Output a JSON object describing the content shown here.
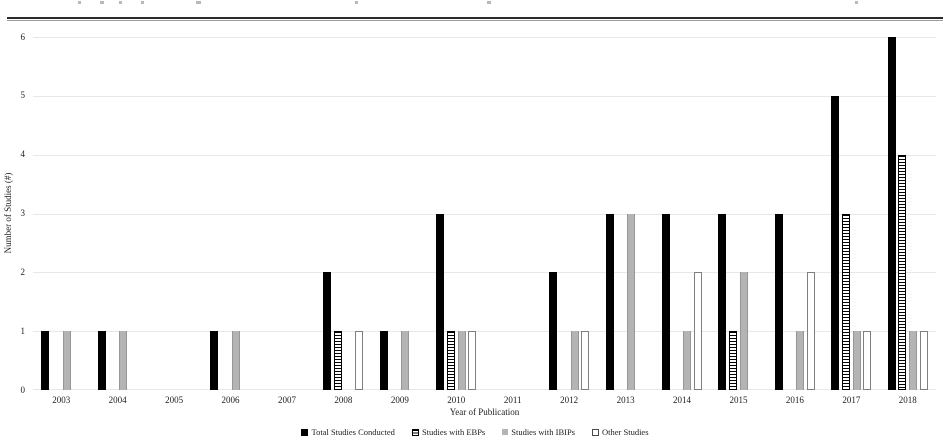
{
  "chart_data": {
    "type": "bar",
    "title": "",
    "xlabel": "Year of Publication",
    "ylabel": "Number of Studies (#)",
    "ylim": [
      0,
      6
    ],
    "yticks": [
      0,
      1,
      2,
      3,
      4,
      5,
      6
    ],
    "grid": "horizontal",
    "legend_position": "bottom-center",
    "categories": [
      "2003",
      "2004",
      "2005",
      "2006",
      "2007",
      "2008",
      "2009",
      "2010",
      "2011",
      "2012",
      "2013",
      "2014",
      "2015",
      "2016",
      "2017",
      "2018"
    ],
    "series": [
      {
        "name": "Total Studies Conducted",
        "style": "solid-black",
        "values": [
          1,
          1,
          0,
          1,
          0,
          2,
          1,
          3,
          0,
          2,
          3,
          3,
          3,
          3,
          5,
          6
        ]
      },
      {
        "name": "Studies with EBPs",
        "style": "horizontal-stripes",
        "values": [
          0,
          0,
          0,
          0,
          0,
          1,
          0,
          1,
          0,
          0,
          0,
          0,
          1,
          0,
          3,
          4
        ]
      },
      {
        "name": "Studies with IBIPs",
        "style": "solid-gray",
        "values": [
          1,
          1,
          0,
          1,
          0,
          0,
          1,
          1,
          0,
          1,
          3,
          1,
          2,
          1,
          1,
          1
        ]
      },
      {
        "name": "Other Studies",
        "style": "white-outline",
        "values": [
          0,
          0,
          0,
          0,
          0,
          1,
          0,
          1,
          0,
          1,
          0,
          2,
          0,
          2,
          1,
          1
        ]
      }
    ],
    "colors": {
      "bar_black": "#000000",
      "bar_gray": "#b4b4b4",
      "bar_gray_border": "#979797",
      "bar_white_border": "#7f7f7f",
      "stripe_color": "#000000",
      "gridline": "#e8e8e8",
      "text": "#1c1c1c"
    }
  }
}
